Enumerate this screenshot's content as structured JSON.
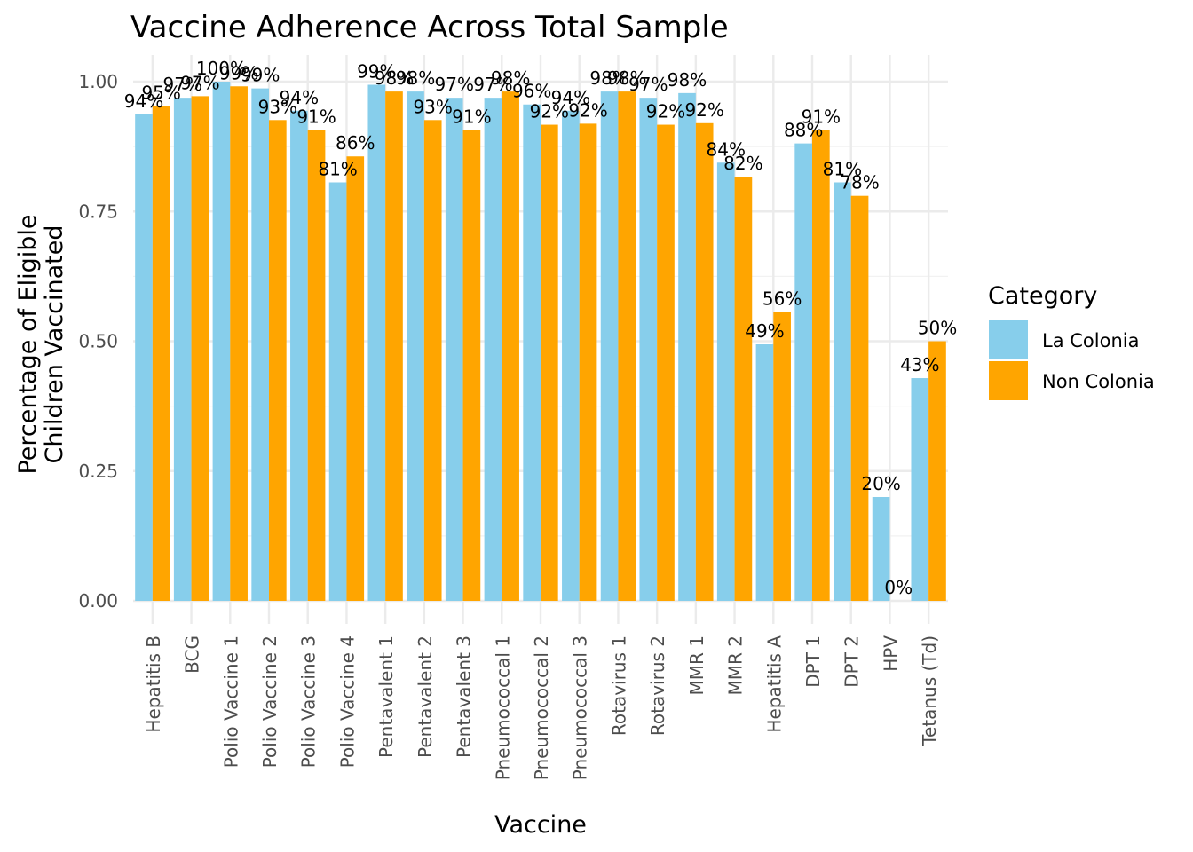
{
  "chart_data": {
    "type": "bar",
    "title": "Vaccine Adherence Across Total Sample",
    "xlabel": "Vaccine",
    "ylabel_lines": [
      "Percentage of Eligible",
      "Children Vaccinated"
    ],
    "ylim": [
      0,
      1.05
    ],
    "yticks": [
      0.0,
      0.25,
      0.5,
      0.75,
      1.0
    ],
    "ytick_labels": [
      "0.00",
      "0.25",
      "0.50",
      "0.75",
      "1.00"
    ],
    "grid": true,
    "legend": {
      "title": "Category",
      "position": "right"
    },
    "categories": [
      "Hepatitis B",
      "BCG",
      "Polio Vaccine 1",
      "Polio Vaccine 2",
      "Polio Vaccine 3",
      "Polio Vaccine 4",
      "Pentavalent 1",
      "Pentavalent 2",
      "Pentavalent 3",
      "Pneumococcal 1",
      "Pneumococcal 2",
      "Pneumococcal 3",
      "Rotavirus 1",
      "Rotavirus 2",
      "MMR 1",
      "MMR 2",
      "Hepatitis A",
      "DPT 1",
      "DPT 2",
      "HPV",
      "Tetanus (Td)"
    ],
    "series": [
      {
        "name": "La Colonia",
        "color": "#87CEEB",
        "values": [
          0.937,
          0.969,
          1.0,
          0.987,
          0.944,
          0.806,
          0.994,
          0.981,
          0.969,
          0.969,
          0.956,
          0.944,
          0.981,
          0.969,
          0.978,
          0.844,
          0.494,
          0.881,
          0.806,
          0.2,
          0.429
        ],
        "labels": [
          "94%",
          "97%",
          "100%",
          "99%",
          "94%",
          "81%",
          "99%",
          "98%",
          "97%",
          "97%",
          "96%",
          "94%",
          "98%",
          "97%",
          "98%",
          "84%",
          "49%",
          "88%",
          "81%",
          "20%",
          "43%"
        ]
      },
      {
        "name": "Non Colonia",
        "color": "#FFA500",
        "values": [
          0.953,
          0.972,
          0.991,
          0.926,
          0.907,
          0.856,
          0.981,
          0.926,
          0.907,
          0.981,
          0.917,
          0.919,
          0.981,
          0.917,
          0.92,
          0.817,
          0.556,
          0.907,
          0.78,
          0.0,
          0.5
        ],
        "labels": [
          "95%",
          "97%",
          "99%",
          "93%",
          "91%",
          "86%",
          "98%",
          "93%",
          "91%",
          "98%",
          "92%",
          "92%",
          "98%",
          "92%",
          "92%",
          "82%",
          "56%",
          "91%",
          "78%",
          "0%",
          "50%"
        ]
      }
    ]
  }
}
